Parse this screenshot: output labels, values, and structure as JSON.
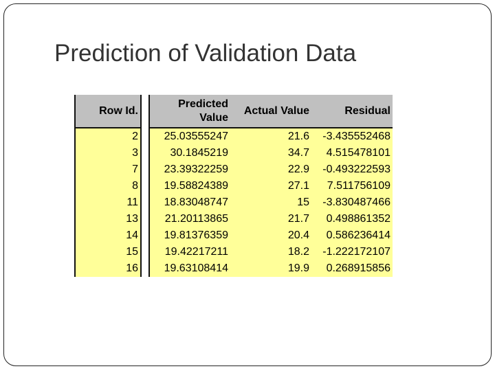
{
  "slide": {
    "title": "Prediction of Validation Data"
  },
  "table": {
    "headers": {
      "row_id": "Row Id.",
      "predicted_line1": "Predicted",
      "predicted_line2": "Value",
      "actual": "Actual Value",
      "residual": "Residual"
    },
    "rows": [
      {
        "row_id": "2",
        "predicted": "25.03555247",
        "actual": "21.6",
        "residual": "-3.435552468"
      },
      {
        "row_id": "3",
        "predicted": "30.1845219",
        "actual": "34.7",
        "residual": "4.515478101"
      },
      {
        "row_id": "7",
        "predicted": "23.39322259",
        "actual": "22.9",
        "residual": "-0.493222593"
      },
      {
        "row_id": "8",
        "predicted": "19.58824389",
        "actual": "27.1",
        "residual": "7.511756109"
      },
      {
        "row_id": "11",
        "predicted": "18.83048747",
        "actual": "15",
        "residual": "-3.830487466"
      },
      {
        "row_id": "13",
        "predicted": "21.20113865",
        "actual": "21.7",
        "residual": "0.498861352"
      },
      {
        "row_id": "14",
        "predicted": "19.81376359",
        "actual": "20.4",
        "residual": "0.586236414"
      },
      {
        "row_id": "15",
        "predicted": "19.42217211",
        "actual": "18.2",
        "residual": "-1.222172107"
      },
      {
        "row_id": "16",
        "predicted": "19.63108414",
        "actual": "19.9",
        "residual": "0.268915856"
      }
    ]
  },
  "colors": {
    "header_fill": "#c0c0c0",
    "cell_fill": "#ffff99",
    "title_text": "#333333"
  }
}
